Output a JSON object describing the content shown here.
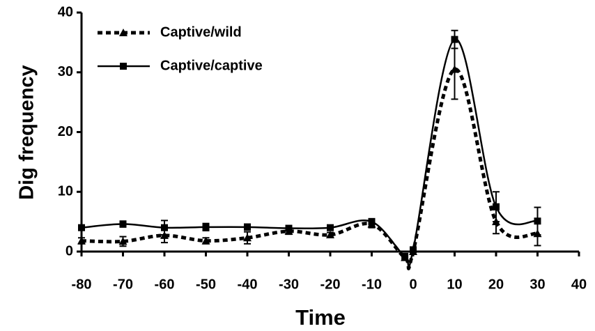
{
  "chart_data": {
    "type": "line",
    "xlabel": "Time",
    "ylabel": "Dig frequency",
    "x": [
      -80,
      -70,
      -60,
      -50,
      -40,
      -30,
      -20,
      -10,
      -2,
      0,
      10,
      20,
      30
    ],
    "series": [
      {
        "name": "Captive/wild",
        "color": "#000000",
        "dash": true,
        "marker": "triangle",
        "values": [
          1.8,
          1.7,
          2.7,
          1.8,
          2.3,
          3.4,
          2.8,
          4.6,
          -1,
          0,
          30.5,
          5,
          3
        ],
        "errors": [
          0.5,
          0.8,
          1.2,
          0.5,
          1,
          0.5,
          0.4,
          0.6,
          null,
          null,
          5,
          2,
          2
        ]
      },
      {
        "name": "Captive/captive",
        "color": "#000000",
        "dash": false,
        "marker": "square",
        "values": [
          4,
          4.6,
          4,
          4.1,
          4.1,
          3.9,
          4,
          5,
          -0.8,
          0.3,
          35.5,
          7.5,
          5.1
        ],
        "errors": [
          0.4,
          0.5,
          1.2,
          0.6,
          0.5,
          0.4,
          0.4,
          0.5,
          null,
          null,
          1.5,
          2.5,
          2.3
        ]
      }
    ],
    "xlim": [
      -80,
      40
    ],
    "xticks": [
      -80,
      -70,
      -60,
      -50,
      -40,
      -30,
      -20,
      -10,
      0,
      10,
      20,
      30,
      40
    ],
    "ylim": [
      0,
      40
    ],
    "yticks": [
      0,
      10,
      20,
      30,
      40
    ],
    "legend": "upper-left",
    "grid": false
  }
}
